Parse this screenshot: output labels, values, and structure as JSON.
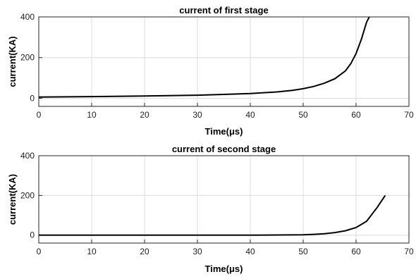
{
  "chart_data": [
    {
      "type": "line",
      "title": "current of first stage",
      "xlabel": "Time(μs)",
      "ylabel": "current(KA)",
      "xlim": [
        0,
        70
      ],
      "ylim": [
        -40,
        400
      ],
      "xticks": [
        0,
        10,
        20,
        30,
        40,
        50,
        60,
        70
      ],
      "yticks": [
        0,
        200,
        400
      ],
      "grid": true,
      "series": [
        {
          "x": [
            0,
            10,
            20,
            30,
            35,
            40,
            45,
            48,
            50,
            52,
            54,
            56,
            58,
            59,
            60,
            61,
            62,
            62.5
          ],
          "y": [
            6,
            8,
            11,
            15,
            19,
            23,
            31,
            39,
            47,
            58,
            74,
            96,
            135,
            170,
            220,
            290,
            375,
            400
          ],
          "color": "#000000"
        }
      ]
    },
    {
      "type": "line",
      "title": "current of second stage",
      "xlabel": "Time(μs)",
      "ylabel": "current(KA)",
      "xlim": [
        0,
        70
      ],
      "ylim": [
        -40,
        400
      ],
      "xticks": [
        0,
        10,
        20,
        30,
        40,
        50,
        60,
        70
      ],
      "yticks": [
        0,
        200,
        400
      ],
      "grid": true,
      "series": [
        {
          "x": [
            0,
            10,
            20,
            30,
            40,
            48,
            50,
            52,
            54,
            56,
            58,
            60,
            62,
            64,
            65.5
          ],
          "y": [
            0,
            0,
            0,
            0,
            0,
            1,
            2,
            4,
            7,
            13,
            22,
            38,
            70,
            140,
            200
          ],
          "color": "#000000"
        }
      ]
    }
  ]
}
